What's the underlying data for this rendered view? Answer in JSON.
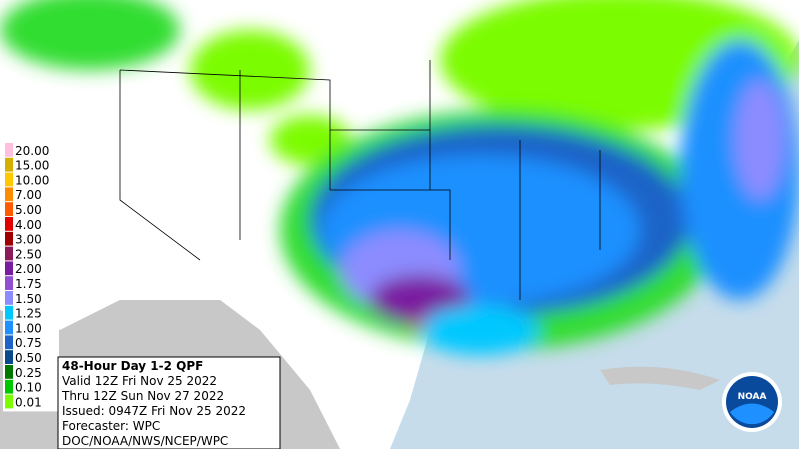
{
  "legend": {
    "items": [
      {
        "label": "20.00",
        "color": "#ffbfdf"
      },
      {
        "label": "15.00",
        "color": "#d4b000"
      },
      {
        "label": "10.00",
        "color": "#ffc800"
      },
      {
        "label": "7.00",
        "color": "#ff8c00"
      },
      {
        "label": "5.00",
        "color": "#ff5a00"
      },
      {
        "label": "4.00",
        "color": "#e00000"
      },
      {
        "label": "3.00",
        "color": "#a00000"
      },
      {
        "label": "2.50",
        "color": "#8b1a5a"
      },
      {
        "label": "2.00",
        "color": "#7a1ea0"
      },
      {
        "label": "1.75",
        "color": "#9050d0"
      },
      {
        "label": "1.50",
        "color": "#8c8cff"
      },
      {
        "label": "1.25",
        "color": "#00c8ff"
      },
      {
        "label": "1.00",
        "color": "#1e90ff"
      },
      {
        "label": "0.75",
        "color": "#1e64c8"
      },
      {
        "label": "0.50",
        "color": "#0a4a8c"
      },
      {
        "label": "0.25",
        "color": "#007800"
      },
      {
        "label": "0.10",
        "color": "#00c800"
      },
      {
        "label": "0.01",
        "color": "#7cfc00"
      }
    ]
  },
  "info": {
    "title": "48-Hour Day 1-2 QPF",
    "valid": "Valid 12Z Fri Nov 25 2022",
    "thru": "Thru 12Z Sun Nov 27 2022",
    "issued": "Issued: 0947Z Fri Nov 25 2022",
    "forecaster": "Forecaster: WPC",
    "agency": "DOC/NOAA/NWS/NCEP/WPC"
  },
  "logo": {
    "text": "NOAA"
  }
}
